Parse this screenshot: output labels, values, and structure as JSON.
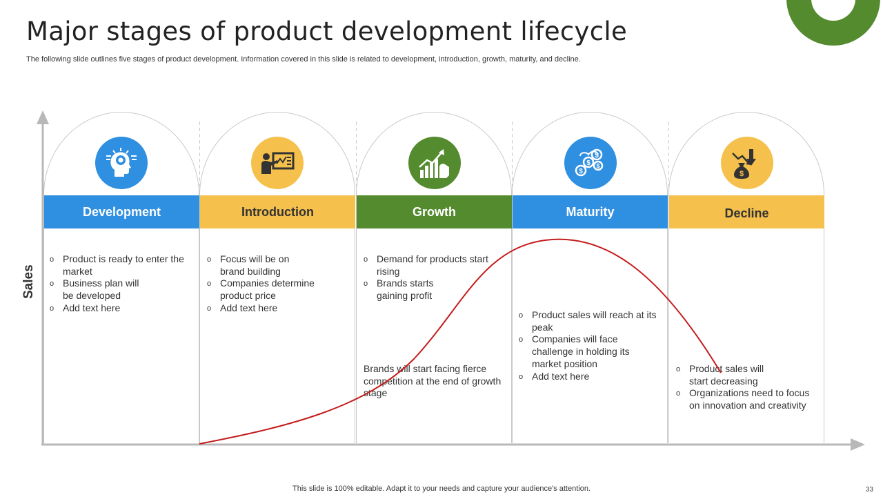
{
  "title": "Major stages of product development lifecycle",
  "subtitle": "The following slide outlines five stages of product development. Information covered in this slide is related to development, introduction, growth, maturity, and decline.",
  "y_axis_label": "Sales",
  "colors": {
    "blue": "#2f8fe0",
    "yellow": "#f5c04b",
    "green": "#558b2f",
    "curve": "#c41b1b",
    "axis": "#b8b8b8"
  },
  "stages": [
    {
      "name": "Development",
      "icon": "head-gear-icon",
      "color": "#2f8fe0",
      "bullets": [
        "Product is ready to enter the market",
        "Business plan will be developed",
        "Add text here"
      ]
    },
    {
      "name": "Introduction",
      "icon": "presentation-icon",
      "color": "#f5c04b",
      "bullets": [
        "Focus will be on brand building",
        "Companies determine product price",
        "Add text here"
      ]
    },
    {
      "name": "Growth",
      "icon": "growth-chart-icon",
      "color": "#558b2f",
      "bullets": [
        "Demand for products start rising",
        "Brands starts gaining profit"
      ],
      "note": "Brands will start facing fierce competition at the end of growth stage"
    },
    {
      "name": "Maturity",
      "icon": "coins-icon",
      "color": "#2f8fe0",
      "bullets": [
        "Product sales will reach at its peak",
        "Companies will face challenge in holding its market position",
        "Add text here"
      ]
    },
    {
      "name": "Decline",
      "icon": "money-bag-down-icon",
      "color": "#f5c04b",
      "bullets": [
        "Product sales will start decreasing",
        "Organizations need to focus on innovation and creativity"
      ]
    }
  ],
  "footer": "This slide is 100% editable. Adapt it to your needs and capture your audience's attention.",
  "page_number": "33"
}
